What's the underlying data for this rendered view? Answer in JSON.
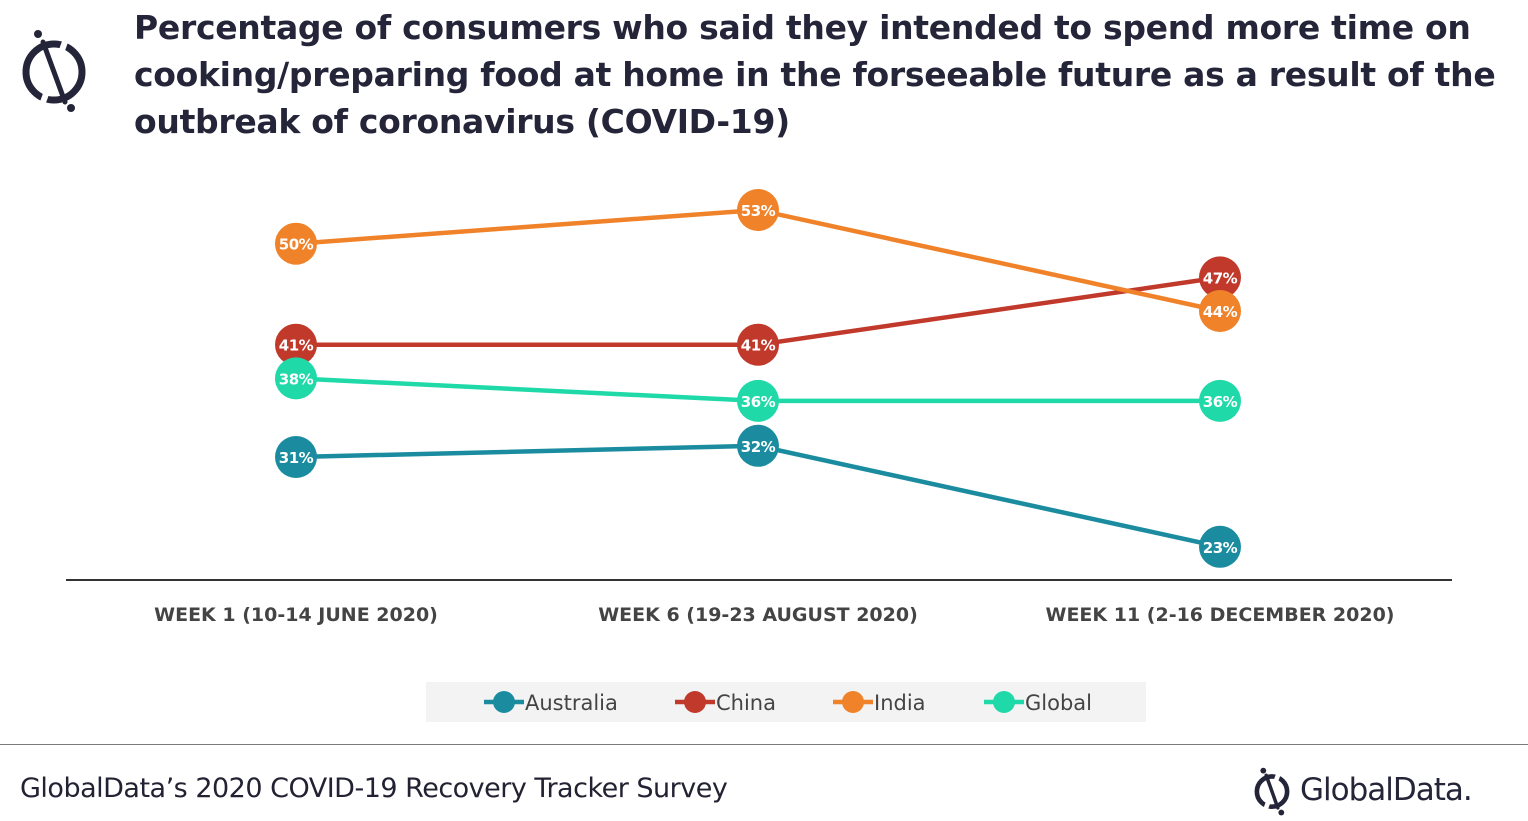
{
  "title": "Percentage of consumers who said they intended to spend more time on cooking/preparing food at home in the forseeable future as a result of the outbreak of coronavirus (COVID-19)",
  "source": "GlobalData’s 2020 COVID-19 Recovery Tracker Survey",
  "brand": "GlobalData.",
  "chart_data": {
    "type": "line",
    "title": "Percentage of consumers who said they intended to spend more time on cooking/preparing food at home in the forseeable future as a result of the outbreak of coronavirus (COVID-19)",
    "categories": [
      "WEEK 1 (10-14 JUNE 2020)",
      "WEEK 6 (19-23 AUGUST 2020)",
      "WEEK 11  (2-16 DECEMBER 2020)"
    ],
    "series": [
      {
        "name": "Australia",
        "color": "#1b8ca0",
        "values": [
          31,
          32,
          23
        ],
        "labels": [
          "31%",
          "32%",
          "23%"
        ]
      },
      {
        "name": "China",
        "color": "#c0392b",
        "values": [
          41,
          41,
          47
        ],
        "labels": [
          "41%",
          "41%",
          "47%"
        ]
      },
      {
        "name": "India",
        "color": "#f0822a",
        "values": [
          50,
          53,
          44
        ],
        "labels": [
          "50%",
          "53%",
          "44%"
        ]
      },
      {
        "name": "Global",
        "color": "#1fd9a8",
        "values": [
          38,
          36,
          36
        ],
        "labels": [
          "38%",
          "36%",
          "36%"
        ]
      }
    ],
    "y_unit": "%",
    "grid": false,
    "legend_position": "bottom"
  }
}
